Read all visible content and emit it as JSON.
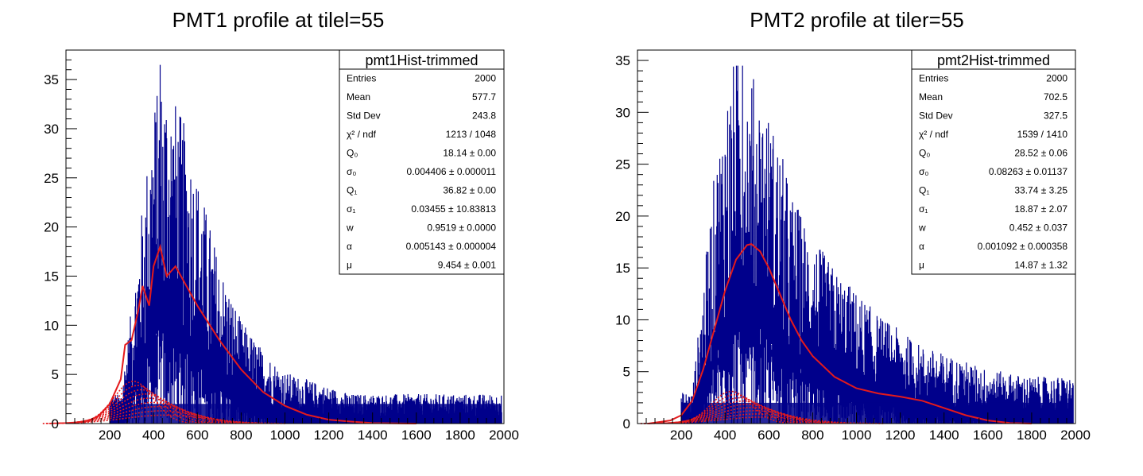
{
  "chart_data": [
    {
      "type": "histogram",
      "title": "PMT1 profile at tilel=55",
      "xlim": [
        0,
        2000
      ],
      "ylim": [
        0,
        38
      ],
      "x_ticks": [
        "200",
        "400",
        "600",
        "800",
        "1000",
        "1200",
        "1400",
        "1600",
        "1800",
        "2000"
      ],
      "y_ticks": [
        "0",
        "5",
        "10",
        "15",
        "20",
        "25",
        "30",
        "35"
      ],
      "grid": false,
      "histogram": {
        "color": "#00008b",
        "peak_x": 430,
        "max_count": 36.5,
        "envelope": [
          [
            250,
            2
          ],
          [
            300,
            8
          ],
          [
            350,
            15
          ],
          [
            400,
            22
          ],
          [
            450,
            24
          ],
          [
            500,
            22
          ],
          [
            550,
            20
          ],
          [
            600,
            17
          ],
          [
            650,
            14
          ],
          [
            700,
            11
          ],
          [
            750,
            9
          ],
          [
            800,
            7
          ],
          [
            900,
            5
          ],
          [
            1000,
            3.5
          ],
          [
            1100,
            3
          ],
          [
            1200,
            2.5
          ],
          [
            1300,
            2
          ],
          [
            1400,
            2
          ],
          [
            1600,
            2
          ],
          [
            1800,
            2
          ],
          [
            1980,
            2
          ]
        ]
      },
      "fit_curve": {
        "color": "#e41a1c",
        "points": [
          [
            100,
            0.2
          ],
          [
            150,
            0.8
          ],
          [
            200,
            2
          ],
          [
            250,
            4.5
          ],
          [
            270,
            8
          ],
          [
            300,
            8.5
          ],
          [
            330,
            11.5
          ],
          [
            350,
            14
          ],
          [
            380,
            12
          ],
          [
            400,
            16
          ],
          [
            430,
            18
          ],
          [
            460,
            15
          ],
          [
            500,
            16
          ],
          [
            550,
            14
          ],
          [
            600,
            12
          ],
          [
            700,
            8.5
          ],
          [
            800,
            5.5
          ],
          [
            900,
            3.2
          ],
          [
            1000,
            1.8
          ],
          [
            1100,
            0.9
          ],
          [
            1200,
            0.4
          ],
          [
            1300,
            0.2
          ],
          [
            1400,
            0.05
          ],
          [
            1600,
            0
          ]
        ]
      },
      "components": {
        "color": "#e41a1c",
        "style": "dotted",
        "peak_x": 380,
        "peak_y": 4.3
      },
      "stats_box": {
        "name": "pmt1Hist-trimmed",
        "rows": [
          {
            "label": "Entries",
            "value": "2000"
          },
          {
            "label": "Mean",
            "value": "577.7"
          },
          {
            "label": "Std Dev",
            "value": "243.8"
          },
          {
            "label": "χ² / ndf",
            "value": "1213 / 1048"
          },
          {
            "label": "Q₀",
            "value": "18.14 ± 0.00"
          },
          {
            "label": "σ₀",
            "value": "0.004406 ± 0.000011"
          },
          {
            "label": "Q₁",
            "value": "36.82 ± 0.00"
          },
          {
            "label": "σ₁",
            "value": "0.03455 ± 10.83813"
          },
          {
            "label": "w",
            "value": "0.9519 ± 0.0000"
          },
          {
            "label": "α",
            "value": "0.005143 ± 0.000004"
          },
          {
            "label": "μ",
            "value": "9.454 ± 0.001"
          }
        ]
      }
    },
    {
      "type": "histogram",
      "title": "PMT2 profile at tiler=55",
      "xlim": [
        0,
        2000
      ],
      "ylim": [
        0,
        36
      ],
      "x_ticks": [
        "200",
        "400",
        "600",
        "800",
        "1000",
        "1200",
        "1400",
        "1600",
        "1800",
        "2000"
      ],
      "y_ticks": [
        "0",
        "5",
        "10",
        "15",
        "20",
        "25",
        "30",
        "35"
      ],
      "grid": false,
      "histogram": {
        "color": "#00008b",
        "peak_x": 480,
        "max_count": 34.5,
        "envelope": [
          [
            250,
            2
          ],
          [
            300,
            9
          ],
          [
            350,
            16
          ],
          [
            400,
            21
          ],
          [
            450,
            24
          ],
          [
            500,
            23
          ],
          [
            550,
            22
          ],
          [
            600,
            20
          ],
          [
            650,
            18
          ],
          [
            700,
            15
          ],
          [
            800,
            12
          ],
          [
            900,
            10
          ],
          [
            1000,
            8.5
          ],
          [
            1100,
            7
          ],
          [
            1200,
            6
          ],
          [
            1300,
            5
          ],
          [
            1400,
            4.5
          ],
          [
            1500,
            4
          ],
          [
            1600,
            3.5
          ],
          [
            1800,
            3
          ],
          [
            1980,
            3
          ]
        ]
      },
      "fit_curve": {
        "color": "#e41a1c",
        "points": [
          [
            50,
            0
          ],
          [
            150,
            0.3
          ],
          [
            200,
            0.8
          ],
          [
            250,
            2.2
          ],
          [
            300,
            5.2
          ],
          [
            350,
            9
          ],
          [
            400,
            12.8
          ],
          [
            450,
            15.8
          ],
          [
            500,
            17.2
          ],
          [
            520,
            17.3
          ],
          [
            560,
            16.6
          ],
          [
            600,
            15
          ],
          [
            650,
            12.5
          ],
          [
            700,
            10
          ],
          [
            750,
            8
          ],
          [
            800,
            6.5
          ],
          [
            900,
            4.5
          ],
          [
            1000,
            3.4
          ],
          [
            1100,
            2.9
          ],
          [
            1200,
            2.6
          ],
          [
            1300,
            2.2
          ],
          [
            1400,
            1.5
          ],
          [
            1500,
            0.8
          ],
          [
            1600,
            0.3
          ],
          [
            1700,
            0.05
          ],
          [
            1800,
            0
          ]
        ]
      },
      "components": {
        "color": "#e41a1c",
        "style": "dotted",
        "peak_x": 500,
        "peak_y": 3.1
      },
      "stats_box": {
        "name": "pmt2Hist-trimmed",
        "rows": [
          {
            "label": "Entries",
            "value": "2000"
          },
          {
            "label": "Mean",
            "value": "702.5"
          },
          {
            "label": "Std Dev",
            "value": "327.5"
          },
          {
            "label": "χ² / ndf",
            "value": "1539 / 1410"
          },
          {
            "label": "Q₀",
            "value": "28.52 ± 0.06"
          },
          {
            "label": "σ₀",
            "value": "0.08263 ± 0.01137"
          },
          {
            "label": "Q₁",
            "value": "33.74 ± 3.25"
          },
          {
            "label": "σ₁",
            "value": "18.87 ± 2.07"
          },
          {
            "label": "w",
            "value": "0.452 ± 0.037"
          },
          {
            "label": "α",
            "value": "0.001092 ± 0.000358"
          },
          {
            "label": "μ",
            "value": "14.87 ± 1.32"
          }
        ]
      }
    }
  ]
}
